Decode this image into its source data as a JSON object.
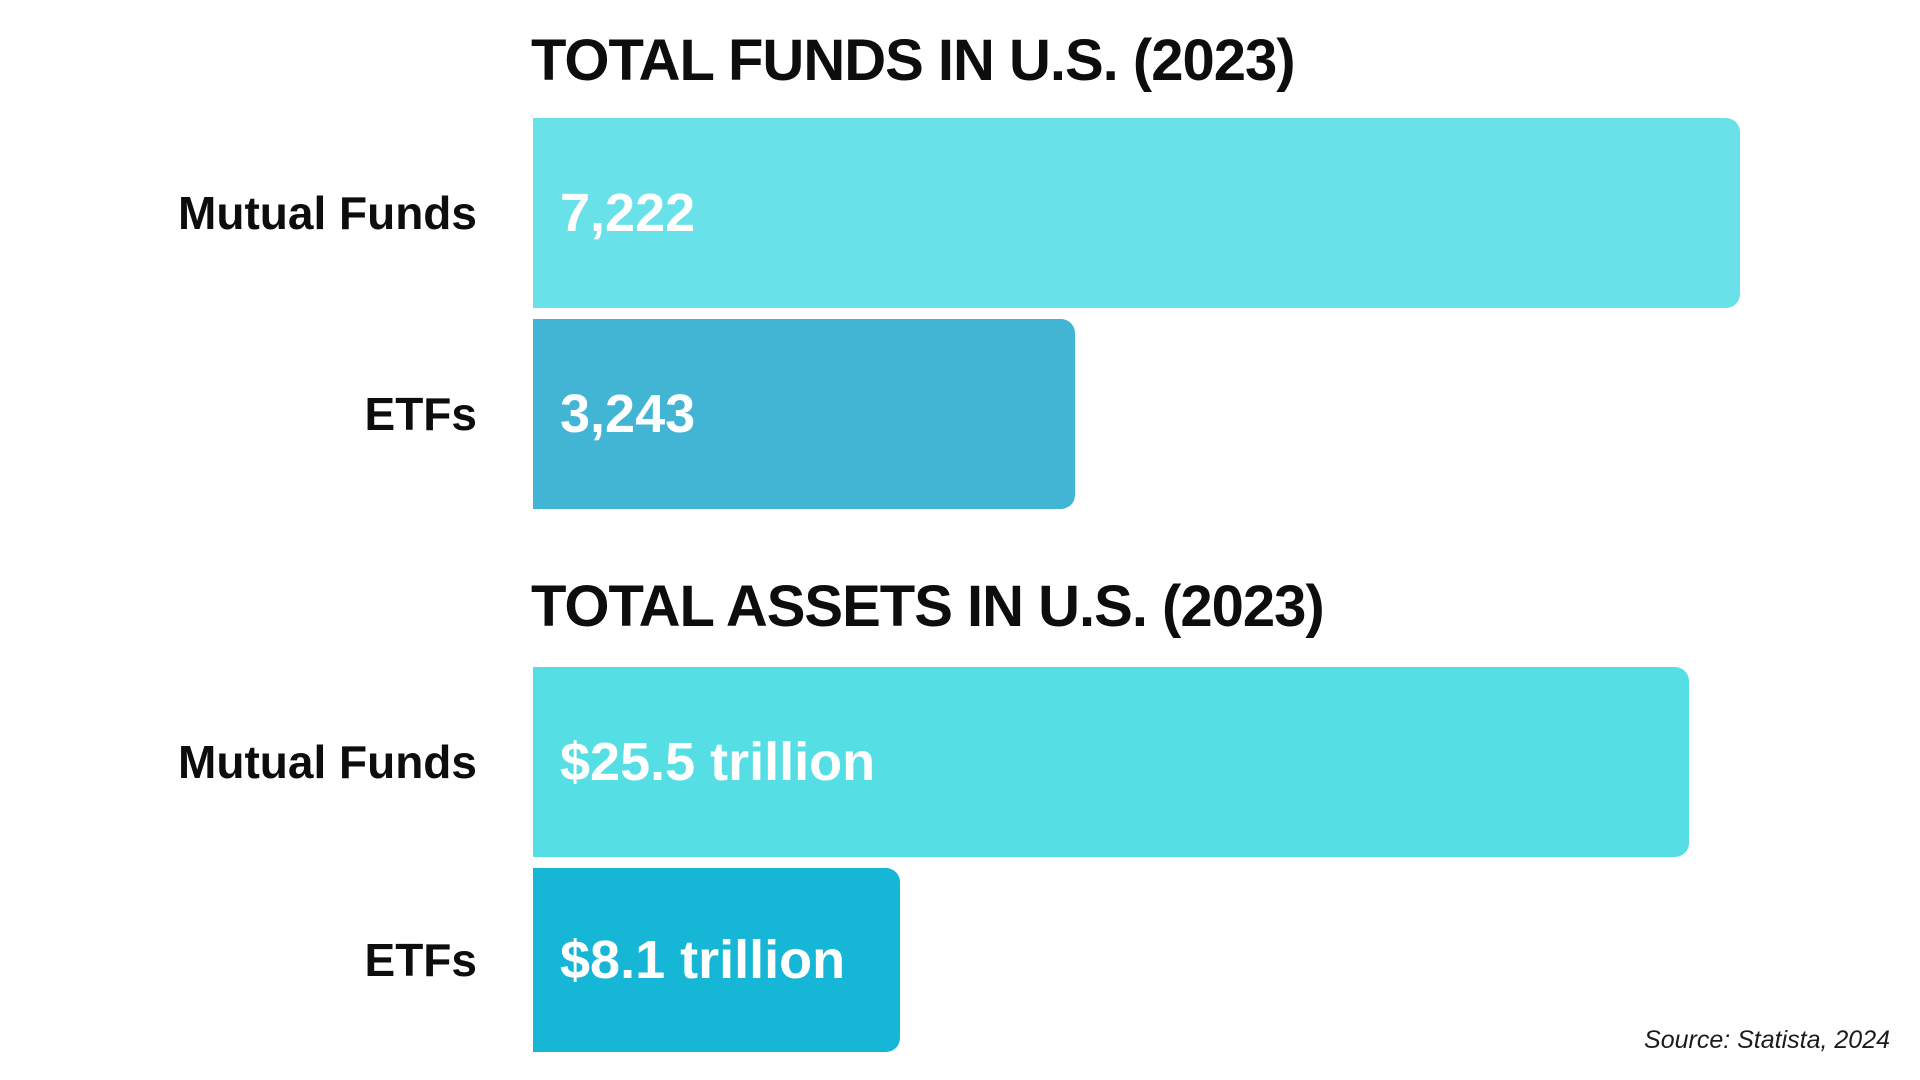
{
  "canvas": {
    "background": "#ffffff",
    "text_color": "#0d0d0d"
  },
  "source": {
    "text": "Source: Statista, 2024",
    "color": "#1c1c1c"
  },
  "chart_data": [
    {
      "type": "bar",
      "orientation": "horizontal",
      "title": "TOTAL FUNDS IN U.S. (2023)",
      "categories": [
        "Mutual Funds",
        "ETFs"
      ],
      "values": [
        7222,
        3243
      ],
      "value_labels": [
        "7,222",
        "3,243"
      ],
      "bar_colors": [
        "#68E1E8",
        "#42B5D5"
      ],
      "xlim": [
        0,
        7222
      ],
      "grid": false,
      "legend": "none",
      "value_label_position": "inside-left",
      "value_label_color": "#ffffff"
    },
    {
      "type": "bar",
      "orientation": "horizontal",
      "title": "TOTAL ASSETS IN U.S. (2023)",
      "categories": [
        "Mutual Funds",
        "ETFs"
      ],
      "values": [
        25.5,
        8.1
      ],
      "unit": "trillion USD",
      "value_labels": [
        "$25.5 trillion",
        "$8.1 trillion"
      ],
      "bar_colors": [
        "#55DFE4",
        "#15B6D6"
      ],
      "xlim": [
        0,
        25.5
      ],
      "grid": false,
      "legend": "none",
      "value_label_position": "inside-left",
      "value_label_color": "#ffffff"
    }
  ]
}
